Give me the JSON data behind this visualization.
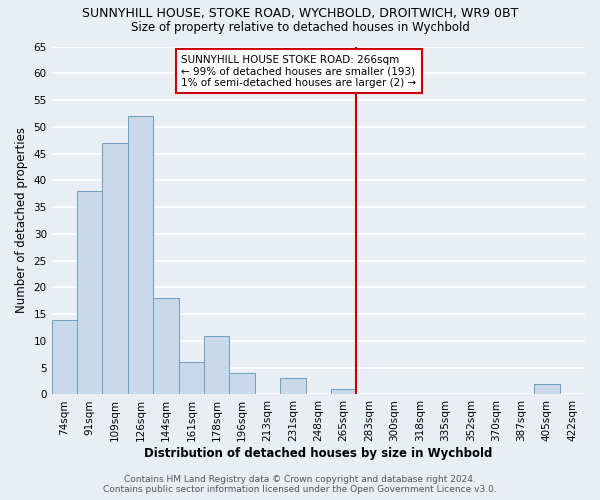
{
  "title": "SUNNYHILL HOUSE, STOKE ROAD, WYCHBOLD, DROITWICH, WR9 0BT",
  "subtitle": "Size of property relative to detached houses in Wychbold",
  "xlabel": "Distribution of detached houses by size in Wychbold",
  "ylabel": "Number of detached properties",
  "bar_labels": [
    "74sqm",
    "91sqm",
    "109sqm",
    "126sqm",
    "144sqm",
    "161sqm",
    "178sqm",
    "196sqm",
    "213sqm",
    "231sqm",
    "248sqm",
    "265sqm",
    "283sqm",
    "300sqm",
    "318sqm",
    "335sqm",
    "352sqm",
    "370sqm",
    "387sqm",
    "405sqm",
    "422sqm"
  ],
  "bar_values": [
    14,
    38,
    47,
    52,
    18,
    6,
    11,
    4,
    0,
    3,
    0,
    1,
    0,
    0,
    0,
    0,
    0,
    0,
    0,
    2,
    0
  ],
  "bar_color": "#c9d9ea",
  "bar_edge_color": "#6a9ec0",
  "ylim": [
    0,
    65
  ],
  "yticks": [
    0,
    5,
    10,
    15,
    20,
    25,
    30,
    35,
    40,
    45,
    50,
    55,
    60,
    65
  ],
  "vline_index": 11,
  "vline_color": "#cc0000",
  "annotation_title": "SUNNYHILL HOUSE STOKE ROAD: 266sqm",
  "annotation_line1": "← 99% of detached houses are smaller (193)",
  "annotation_line2": "1% of semi-detached houses are larger (2) →",
  "footer_line1": "Contains HM Land Registry data © Crown copyright and database right 2024.",
  "footer_line2": "Contains public sector information licensed under the Open Government Licence v3.0.",
  "bg_color": "#e8eef4",
  "plot_bg_color": "#e8eef4",
  "grid_color": "#ffffff",
  "title_fontsize": 9,
  "subtitle_fontsize": 8.5,
  "axis_label_fontsize": 8.5,
  "tick_fontsize": 7.5,
  "footer_fontsize": 6.5
}
